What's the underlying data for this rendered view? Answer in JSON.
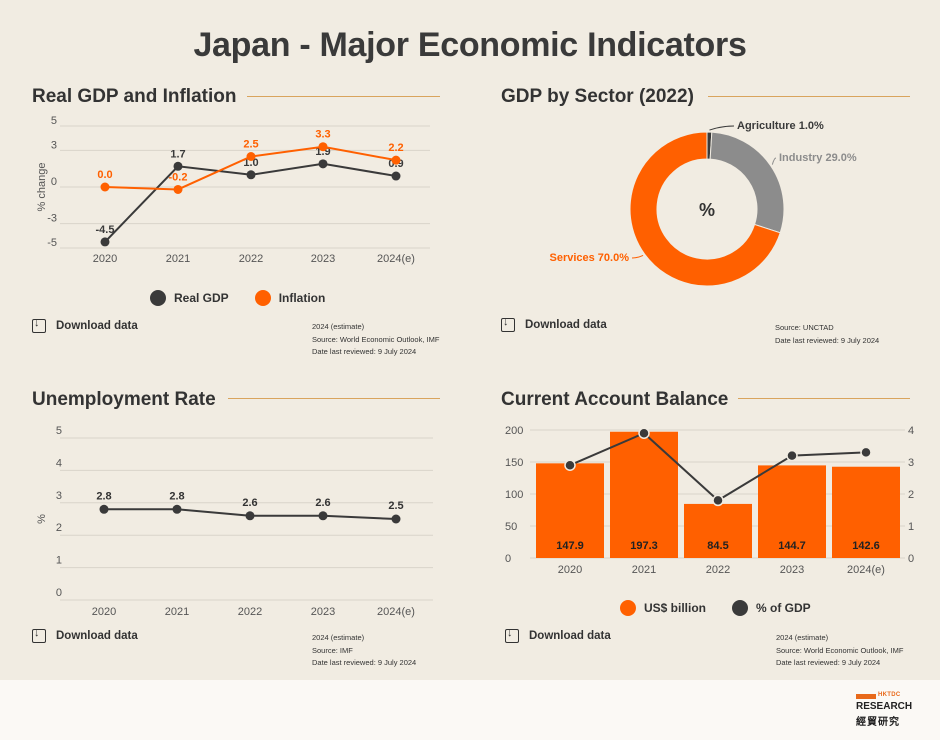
{
  "page": {
    "title": "Japan - Major Economic Indicators"
  },
  "colors": {
    "orange": "#ff6000",
    "dark": "#3a3a3a",
    "gray": "#8c8c8c",
    "rule": "#d9a45d",
    "background": "#f1ece2"
  },
  "panels": {
    "gdp_inflation": {
      "title": "Real GDP and Inflation",
      "download_label": "Download data",
      "notes": [
        "2024 (estimate)",
        "Source: World Economic Outlook, IMF",
        "Date last reviewed: 9 July 2024"
      ]
    },
    "gdp_sector": {
      "title": "GDP by Sector (2022)",
      "download_label": "Download data",
      "notes": [
        "Source: UNCTAD",
        "Date last reviewed: 9 July 2024"
      ]
    },
    "unemployment": {
      "title": "Unemployment Rate",
      "download_label": "Download data",
      "notes": [
        "2024 (estimate)",
        "Source: IMF",
        "Date last reviewed: 9 July 2024"
      ]
    },
    "current_account": {
      "title": "Current Account Balance",
      "download_label": "Download data",
      "notes": [
        "2024 (estimate)",
        "Source: World Economic Outlook, IMF",
        "Date last reviewed: 9 July 2024"
      ]
    }
  },
  "logo": {
    "small": "HKTDC",
    "main": "RESEARCH",
    "chinese": "經貿研究"
  },
  "chart_data": [
    {
      "type": "line",
      "categories": [
        "2020",
        "2021",
        "2022",
        "2023",
        "2024(e)"
      ],
      "ylabel": "% change",
      "ylim": [
        -5,
        5
      ],
      "yticks": [
        "5",
        "3",
        "0",
        "-3",
        "-5"
      ],
      "series": [
        {
          "name": "Real GDP",
          "color": "#3a3a3a",
          "values": [
            -4.5,
            1.7,
            1.0,
            1.9,
            0.9
          ],
          "labels": [
            "-4.5",
            "1.7",
            "1.0",
            "1.9",
            "0.9"
          ]
        },
        {
          "name": "Inflation",
          "color": "#ff6000",
          "values": [
            0.0,
            -0.2,
            2.5,
            3.3,
            2.2
          ],
          "labels": [
            "0.0",
            "-0.2",
            "2.5",
            "3.3",
            "2.2"
          ]
        }
      ],
      "legend": "bottom",
      "grid": true
    },
    {
      "type": "pie",
      "center_label": "%",
      "slices": [
        {
          "name": "Agriculture",
          "label": "Agriculture 1.0%",
          "value": 1.0,
          "color": "#3a3a3a"
        },
        {
          "name": "Industry",
          "label": "Industry 29.0%",
          "value": 29.0,
          "color": "#8c8c8c"
        },
        {
          "name": "Services",
          "label": "Services 70.0%",
          "value": 70.0,
          "color": "#ff6000"
        }
      ]
    },
    {
      "type": "line",
      "categories": [
        "2020",
        "2021",
        "2022",
        "2023",
        "2024(e)"
      ],
      "ylabel": "%",
      "ylim": [
        0,
        5
      ],
      "yticks": [
        "5",
        "4",
        "3",
        "2",
        "1",
        "0"
      ],
      "series": [
        {
          "color": "#3a3a3a",
          "values": [
            2.8,
            2.8,
            2.6,
            2.6,
            2.5
          ],
          "labels": [
            "2.8",
            "2.8",
            "2.6",
            "2.6",
            "2.5"
          ]
        }
      ],
      "grid": true
    },
    {
      "type": "bar",
      "categories": [
        "2020",
        "2021",
        "2022",
        "2023",
        "2024(e)"
      ],
      "ylim": [
        0,
        200
      ],
      "yticks": [
        "200",
        "150",
        "100",
        "50",
        "0"
      ],
      "y2lim": [
        0,
        4
      ],
      "y2ticks": [
        "4",
        "3",
        "2",
        "1",
        "0"
      ],
      "series": [
        {
          "name": "US$ billion",
          "type": "bar",
          "color": "#ff6000",
          "values": [
            147.9,
            197.3,
            84.5,
            144.7,
            142.6
          ],
          "labels": [
            "147.9",
            "197.3",
            "84.5",
            "144.7",
            "142.6"
          ]
        },
        {
          "name": "% of GDP",
          "type": "line",
          "axis": "right",
          "color": "#3a3a3a",
          "values": [
            2.9,
            3.9,
            1.8,
            3.2,
            3.3
          ]
        }
      ],
      "legend": "bottom",
      "grid": true
    }
  ]
}
